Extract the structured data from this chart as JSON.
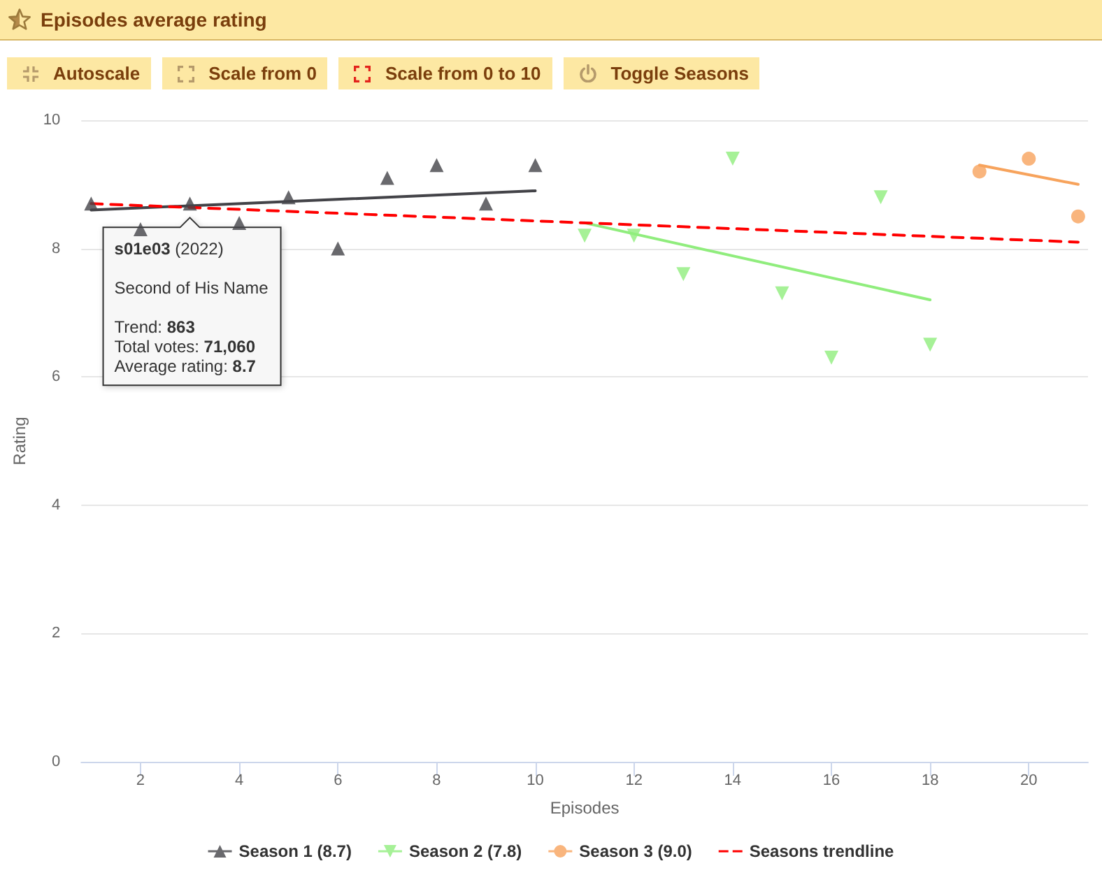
{
  "chart_data": {
    "type": "scatter",
    "title": "Episodes average rating",
    "xlabel": "Episodes",
    "ylabel": "Rating",
    "xlim": [
      0.8,
      21.2
    ],
    "xticks": [
      2,
      4,
      6,
      8,
      10,
      12,
      14,
      16,
      18,
      20
    ],
    "ylim": [
      0,
      10
    ],
    "yticks": [
      0,
      2,
      4,
      6,
      8,
      10
    ],
    "grid": "y",
    "legend": "bottom",
    "series": [
      {
        "name": "Season 1 (8.7)",
        "type": "scatter",
        "marker": "triangle",
        "color": "#434348",
        "x": [
          1,
          2,
          3,
          4,
          5,
          6,
          7,
          8,
          9,
          10
        ],
        "values": [
          8.7,
          8.3,
          8.7,
          8.4,
          8.8,
          8.0,
          9.1,
          9.3,
          8.7,
          9.3
        ]
      },
      {
        "type": "line",
        "color": "#434348",
        "x": [
          1,
          10
        ],
        "values": [
          8.6,
          8.9
        ]
      },
      {
        "name": "Season 2 (7.8)",
        "type": "scatter",
        "marker": "triangle-down",
        "color": "#90ed7d",
        "x": [
          11,
          12,
          13,
          14,
          15,
          16,
          17,
          18
        ],
        "values": [
          8.2,
          8.2,
          7.6,
          9.4,
          7.3,
          6.3,
          8.8,
          6.5
        ]
      },
      {
        "type": "line",
        "color": "#90ed7d",
        "x": [
          11,
          18
        ],
        "values": [
          8.4,
          7.2
        ]
      },
      {
        "name": "Season 3 (9.0)",
        "type": "scatter",
        "marker": "circle",
        "color": "#f7a35c",
        "x": [
          19,
          20,
          21
        ],
        "values": [
          9.2,
          9.4,
          8.5
        ]
      },
      {
        "type": "line",
        "color": "#f7a35c",
        "x": [
          19,
          21
        ],
        "values": [
          9.3,
          9.0
        ]
      },
      {
        "name": "Seasons trendline",
        "type": "line",
        "line_style": "dashed",
        "color": "#ff0000",
        "x": [
          1,
          21
        ],
        "values": [
          8.7,
          8.1
        ]
      }
    ],
    "annotations": [
      "Autoscale",
      "Scale from 0",
      "Scale from 0 to 10",
      "Toggle Seasons",
      {
        "text": "s01e03 (2022)",
        "x": 3,
        "y": 8.7
      },
      "Second of His Name",
      "Trend: 863",
      "Total votes: 71,060",
      "Average rating: 8.7"
    ]
  }
}
